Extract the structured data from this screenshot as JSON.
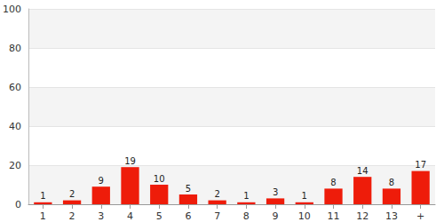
{
  "chart_data": {
    "type": "bar",
    "categories": [
      "1",
      "2",
      "3",
      "4",
      "5",
      "6",
      "7",
      "8",
      "9",
      "10",
      "11",
      "12",
      "13",
      "+"
    ],
    "values": [
      1,
      2,
      9,
      19,
      10,
      5,
      2,
      1,
      3,
      1,
      8,
      14,
      8,
      17
    ],
    "color": "#ee1c0a",
    "ylim": [
      0,
      100
    ],
    "yticks": [
      0,
      20,
      40,
      60,
      80,
      100
    ],
    "grid": true,
    "data_labels": true
  }
}
